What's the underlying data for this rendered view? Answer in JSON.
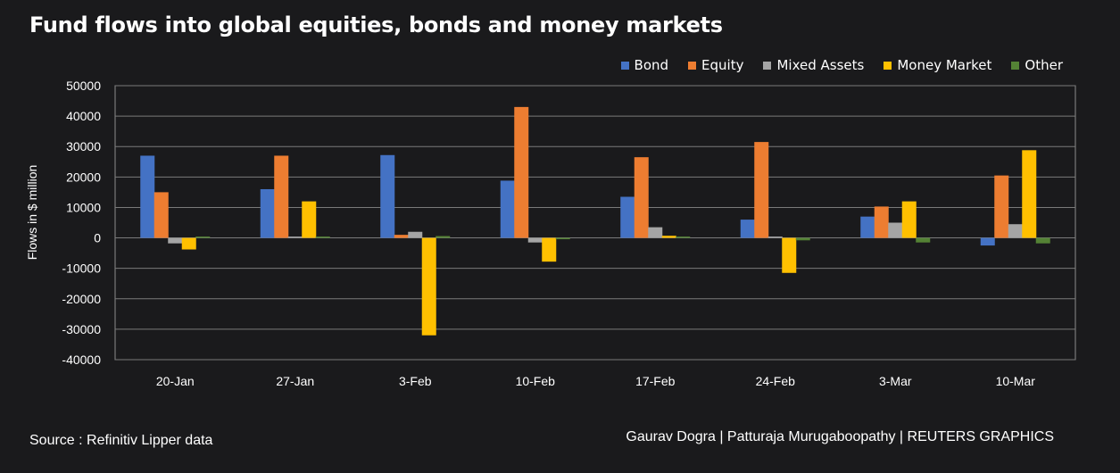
{
  "title": "Fund flows into global equities, bonds and money markets",
  "source": "Source : Refinitiv Lipper data",
  "credit": "Gaurav Dogra | Patturaja Murugaboopathy | REUTERS GRAPHICS",
  "chart_data": {
    "type": "bar",
    "ylabel": "Flows in $ million",
    "ylim": [
      -40000,
      50000
    ],
    "yticks": [
      50000,
      40000,
      30000,
      20000,
      10000,
      0,
      -10000,
      -20000,
      -30000,
      -40000
    ],
    "categories": [
      "20-Jan",
      "27-Jan",
      "3-Feb",
      "10-Feb",
      "17-Feb",
      "24-Feb",
      "3-Mar",
      "10-Mar"
    ],
    "legend_position": "top-right",
    "grid": true,
    "series": [
      {
        "name": "Bond",
        "color": "#4472c4",
        "values": [
          27000,
          16000,
          27200,
          18800,
          13500,
          6000,
          7000,
          -2500
        ]
      },
      {
        "name": "Equity",
        "color": "#ed7d31",
        "values": [
          15000,
          27000,
          1000,
          43000,
          26500,
          31500,
          10300,
          20500
        ]
      },
      {
        "name": "Mixed Assets",
        "color": "#a5a5a5",
        "values": [
          -1800,
          300,
          2000,
          -1500,
          3500,
          300,
          5000,
          4500
        ]
      },
      {
        "name": "Money Market",
        "color": "#ffc000",
        "values": [
          -3800,
          12000,
          -32000,
          -7800,
          700,
          -11500,
          12000,
          28800
        ]
      },
      {
        "name": "Other",
        "color": "#548235",
        "values": [
          300,
          400,
          600,
          -200,
          300,
          -800,
          -1500,
          -1800
        ]
      }
    ]
  }
}
